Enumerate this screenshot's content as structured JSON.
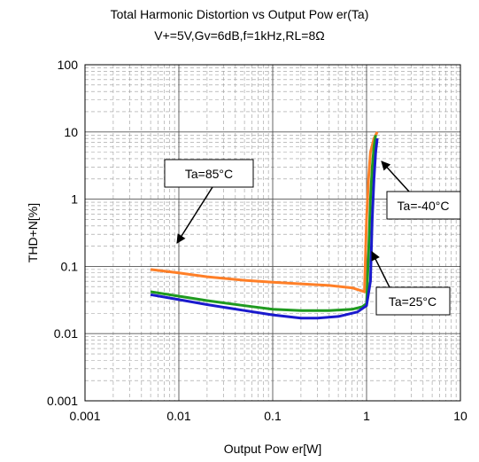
{
  "chart_data": {
    "type": "line",
    "title": "Total Harmonic Distortion vs Output Pow er(Ta)",
    "subtitle": "V+=5V,Gv=6dB,f=1kHz,RL=8Ω",
    "xlabel": "Output Pow er[W]",
    "ylabel": "THD+N[%]",
    "xscale": "log",
    "yscale": "log",
    "xlim": [
      0.001,
      10
    ],
    "ylim": [
      0.001,
      100
    ],
    "x_ticks": [
      "0.001",
      "0.01",
      "0.1",
      "1",
      "10"
    ],
    "y_ticks": [
      "100",
      "10",
      "1",
      "0.1",
      "0.01",
      "0.001"
    ],
    "grid": true,
    "series": [
      {
        "name": "Ta=85°C",
        "color": "#ff7f27",
        "x": [
          0.005,
          0.01,
          0.02,
          0.05,
          0.1,
          0.2,
          0.4,
          0.7,
          0.9,
          0.95,
          1.0,
          1.05,
          1.1,
          1.2,
          1.3
        ],
        "y": [
          0.09,
          0.08,
          0.07,
          0.062,
          0.058,
          0.055,
          0.052,
          0.048,
          0.043,
          0.042,
          0.5,
          2.0,
          5.0,
          8.0,
          10.0
        ]
      },
      {
        "name": "Ta=25°C",
        "color": "#1f9a1f",
        "x": [
          0.005,
          0.01,
          0.02,
          0.05,
          0.1,
          0.2,
          0.4,
          0.7,
          0.9,
          1.0,
          1.05,
          1.1,
          1.15,
          1.2,
          1.25
        ],
        "y": [
          0.042,
          0.036,
          0.031,
          0.026,
          0.023,
          0.022,
          0.022,
          0.023,
          0.025,
          0.028,
          0.15,
          1.0,
          3.0,
          6.0,
          9.0
        ]
      },
      {
        "name": "Ta=-40°C",
        "color": "#1a1acd",
        "x": [
          0.005,
          0.01,
          0.02,
          0.05,
          0.1,
          0.2,
          0.3,
          0.5,
          0.8,
          1.0,
          1.1,
          1.15,
          1.2,
          1.25,
          1.3
        ],
        "y": [
          0.038,
          0.032,
          0.027,
          0.022,
          0.019,
          0.017,
          0.017,
          0.018,
          0.021,
          0.026,
          0.06,
          0.5,
          2.0,
          5.0,
          8.0
        ]
      }
    ],
    "annotations": [
      {
        "text": "Ta=85°C"
      },
      {
        "text": "Ta=-40°C"
      },
      {
        "text": "Ta=25°C"
      }
    ]
  }
}
